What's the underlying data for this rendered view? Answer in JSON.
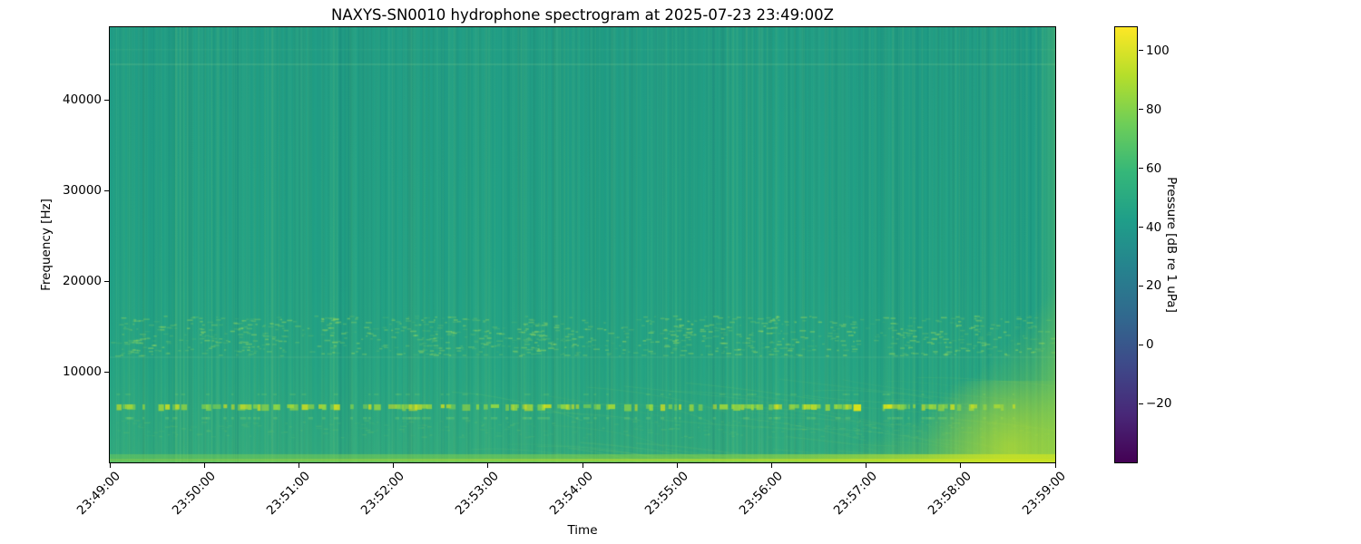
{
  "title": "NAXYS-SN0010 hydrophone spectrogram at 2025-07-23 23:49:00Z",
  "axes": {
    "xlabel": "Time",
    "ylabel": "Frequency [Hz]",
    "x_tick_labels": [
      "23:49:00",
      "23:50:00",
      "23:51:00",
      "23:52:00",
      "23:53:00",
      "23:54:00",
      "23:55:00",
      "23:56:00",
      "23:57:00",
      "23:58:00",
      "23:59:00"
    ],
    "y_tick_labels": [
      "10000",
      "20000",
      "30000",
      "40000"
    ],
    "y_tick_values": [
      10000,
      20000,
      30000,
      40000
    ]
  },
  "colorbar": {
    "label": "Pressure [dB re 1 uPa]",
    "tick_labels": [
      "−20",
      "0",
      "20",
      "40",
      "60",
      "80",
      "100"
    ],
    "tick_values": [
      -20,
      0,
      20,
      40,
      60,
      80,
      100
    ],
    "vmin": -40,
    "vmax": 108,
    "colormap": "viridis",
    "gradient_stops": [
      "#440154",
      "#482878",
      "#3e4989",
      "#31688e",
      "#26828e",
      "#1f9e89",
      "#35b779",
      "#6ece58",
      "#b5de2b",
      "#fde725"
    ]
  },
  "chart_data": {
    "type": "heatmap",
    "title": "NAXYS-SN0010 hydrophone spectrogram at 2025-07-23 23:49:00Z",
    "xlabel": "Time",
    "ylabel": "Frequency [Hz]",
    "x_range": [
      "23:49:00",
      "23:59:00"
    ],
    "x_span_seconds": 600,
    "x_tick_interval_seconds": 60,
    "y_range_hz": [
      0,
      48000
    ],
    "value_label": "Pressure [dB re 1 uPa]",
    "value_range_db": [
      -40,
      108
    ],
    "colormap": "viridis",
    "background_level_db": 48,
    "features": [
      {
        "name": "broadband-click-trains",
        "freq_hz": [
          1000,
          46000
        ],
        "time": [
          "23:49:00",
          "23:59:00"
        ],
        "description": "faint bright vertical lines (impulsive clicks) throughout the record"
      },
      {
        "name": "click-tonal-band",
        "freq_hz": [
          5700,
          6600
        ],
        "level_db": [
          80,
          100
        ],
        "description": "bright yellow-green dashed horizontal band near 6 kHz aligned with clicks"
      },
      {
        "name": "stippled-band",
        "freq_hz": [
          11800,
          16200
        ],
        "level_db": [
          60,
          75
        ],
        "description": "speckled dashes in bursts between 12 and 16 kHz"
      },
      {
        "name": "tonal-line",
        "freq_hz": [
          44000,
          44000
        ],
        "level_db": [
          55,
          60
        ],
        "description": "faint continuous horizontal line near 44 kHz"
      },
      {
        "name": "surface-noise-band",
        "freq_hz": [
          0,
          900
        ],
        "level_db": [
          65,
          85
        ],
        "description": "bright green band along the bottom edge, intensifying toward the right"
      },
      {
        "name": "vessel-approach-event",
        "time": [
          "23:56:00",
          "23:59:00"
        ],
        "freq_hz": [
          0,
          20000
        ],
        "level_db": [
          70,
          95
        ],
        "description": "yellow-green low-frequency wedge rising toward the right edge with interference filaments"
      }
    ],
    "render": {
      "background_color": "#22a386",
      "striation_count": 1100,
      "bright_dash_colors": [
        "#d8e219",
        "#a5db36",
        "#8ed645"
      ],
      "event_color": "#bade28",
      "bottom_band_color": "#7ed24e"
    }
  }
}
